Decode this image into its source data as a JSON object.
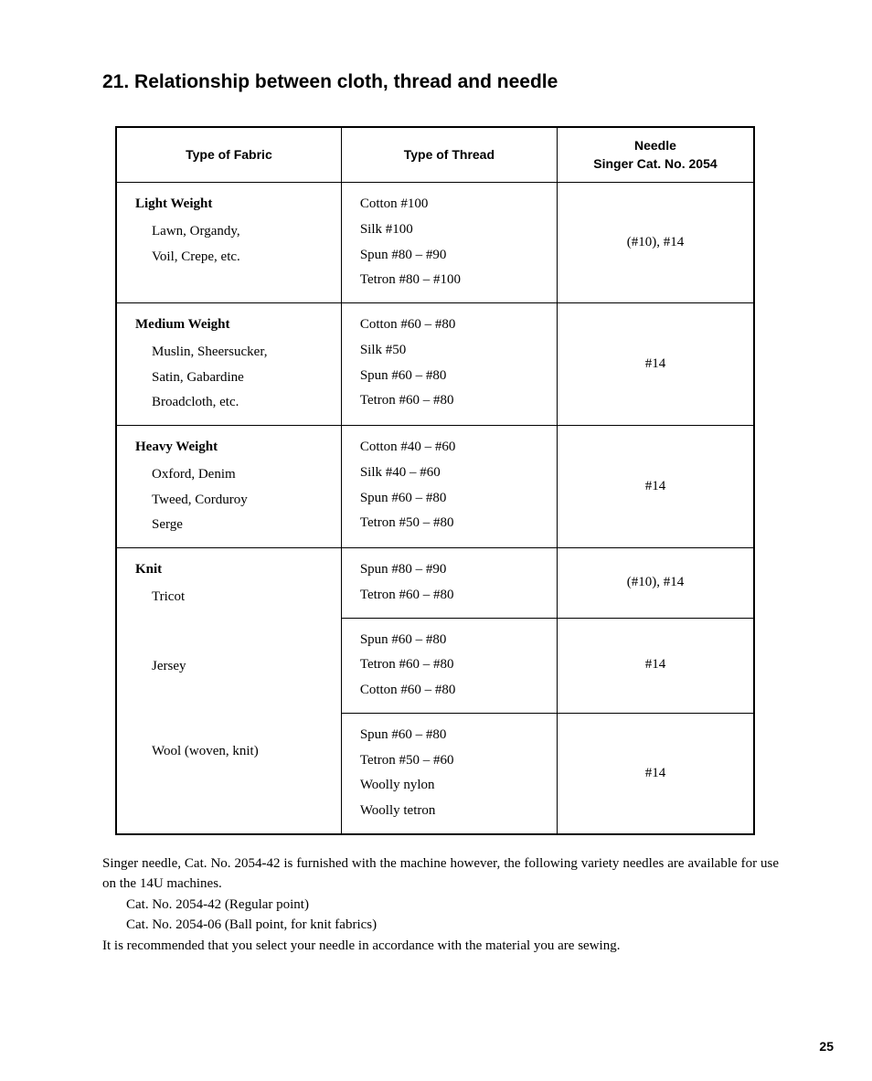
{
  "section_number": "21.",
  "section_title": "Relationship between cloth, thread and needle",
  "table": {
    "headers": {
      "fabric": "Type of Fabric",
      "thread": "Type of Thread",
      "needle_line1": "Needle",
      "needle_line2": "Singer Cat. No. 2054"
    },
    "rows": [
      {
        "fabric_title": "Light  Weight",
        "fabric_items": "Lawn, Organdy,\nVoil, Crepe, etc.",
        "thread": "Cotton #100\nSilk #100\nSpun #80 – #90\nTetron #80 – #100",
        "needle": "(#10), #14"
      },
      {
        "fabric_title": "Medium Weight",
        "fabric_items": "Muslin, Sheersucker,\nSatin, Gabardine\nBroadcloth, etc.",
        "thread": "Cotton #60 – #80\nSilk #50\nSpun #60 – #80\nTetron #60 – #80",
        "needle": "#14"
      },
      {
        "fabric_title": "Heavy Weight",
        "fabric_items": "Oxford, Denim\nTweed, Corduroy\nSerge",
        "thread": "Cotton #40 – #60\nSilk #40 – #60\nSpun #60 – #80\nTetron #50 – #80",
        "needle": "#14"
      },
      {
        "fabric_title": "Knit",
        "fabric_items": "Tricot",
        "thread": "Spun #80 – #90\nTetron #60 – #80",
        "needle": "(#10), #14"
      },
      {
        "fabric_items": "Jersey",
        "thread": "Spun #60 – #80\nTetron #60 – #80\nCotton #60 – #80",
        "needle": "#14"
      },
      {
        "fabric_items": "Wool (woven, knit)",
        "thread": "Spun #60 – #80\nTetron #50 – #60\nWoolly nylon\nWoolly tetron",
        "needle": "#14"
      }
    ]
  },
  "footnote": {
    "p1": "Singer needle, Cat. No. 2054-42 is furnished with the machine however, the following variety needles are available for use on the 14U  machines.",
    "line1": "Cat. No. 2054-42 (Regular point)",
    "line2": "Cat. No. 2054-06 (Ball point, for knit fabrics)",
    "p2": "It is recommended that you select your needle in accordance with the material you are sewing."
  },
  "page_number": "25"
}
